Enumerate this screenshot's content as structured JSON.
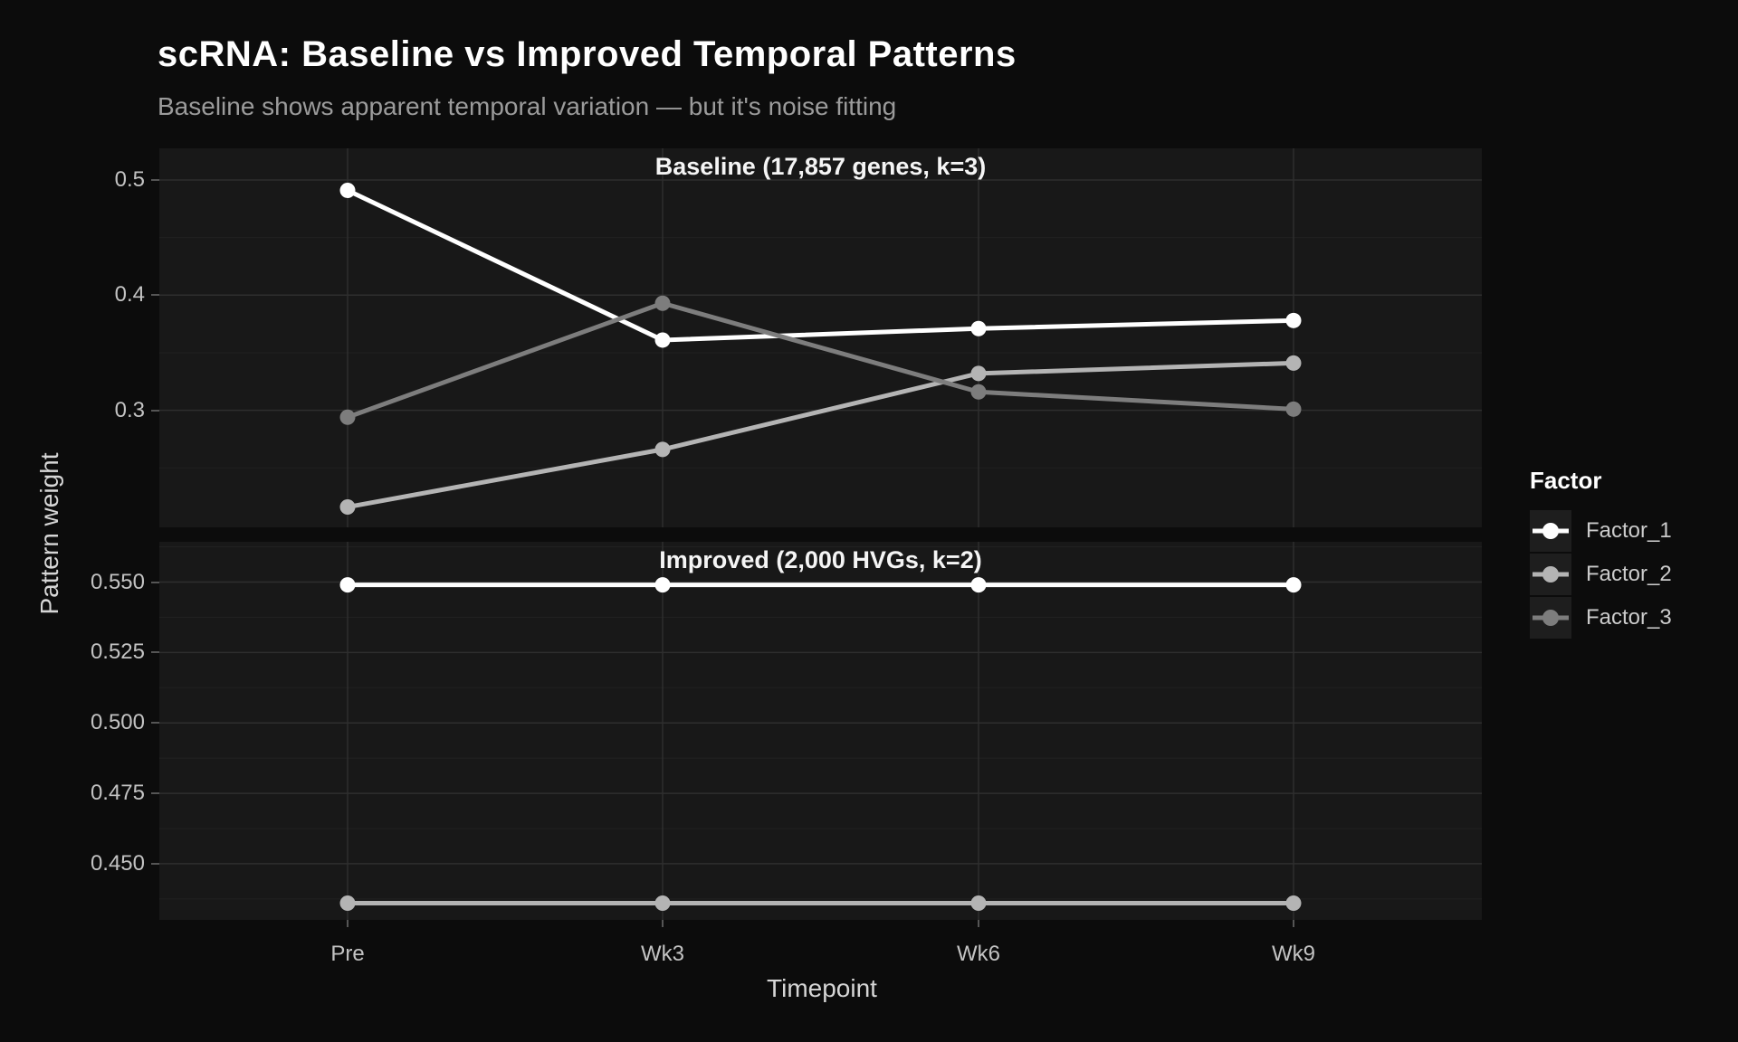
{
  "title": "scRNA: Baseline vs Improved Temporal Patterns",
  "subtitle": "Baseline shows apparent temporal variation — but it's noise fitting",
  "axes": {
    "x_title": "Timepoint",
    "y_title": "Pattern weight",
    "categories": [
      "Pre",
      "Wk3",
      "Wk6",
      "Wk9"
    ]
  },
  "legend": {
    "title": "Factor",
    "items": [
      {
        "label": "Factor_1",
        "color": "#ffffff"
      },
      {
        "label": "Factor_2",
        "color": "#b4b4b4"
      },
      {
        "label": "Factor_3",
        "color": "#7d7d7d"
      }
    ]
  },
  "colors": {
    "page_bg": "#0c0c0c",
    "panel_bg": "#181818",
    "grid_major": "#2e2e2e",
    "grid_minor": "#212121",
    "factor1": "#ffffff",
    "factor2": "#b4b4b4",
    "factor3": "#7d7d7d"
  },
  "chart_data": {
    "type": "line",
    "x": [
      "Pre",
      "Wk3",
      "Wk6",
      "Wk9"
    ],
    "xlabel": "Timepoint",
    "ylabel": "Pattern weight",
    "grid": true,
    "legend_position": "right",
    "facets": [
      {
        "title": "Baseline (17,857 genes, k=3)",
        "ylim": [
          0.198,
          0.528
        ],
        "yticks": [
          0.5,
          0.4,
          0.3
        ],
        "ytick_labels": [
          "0.5",
          "0.4",
          "0.3"
        ],
        "series": [
          {
            "name": "Factor_1",
            "color": "#ffffff",
            "values": [
              0.491,
              0.361,
              0.371,
              0.378
            ]
          },
          {
            "name": "Factor_2",
            "color": "#b4b4b4",
            "values": [
              0.216,
              0.266,
              0.332,
              0.341
            ]
          },
          {
            "name": "Factor_3",
            "color": "#7d7d7d",
            "values": [
              0.294,
              0.393,
              0.316,
              0.301
            ]
          }
        ]
      },
      {
        "title": "Improved (2,000 HVGs, k=2)",
        "ylim": [
          0.43,
          0.564
        ],
        "yticks": [
          0.55,
          0.525,
          0.5,
          0.475,
          0.45
        ],
        "ytick_labels": [
          "0.550",
          "0.525",
          "0.500",
          "0.475",
          "0.450"
        ],
        "series": [
          {
            "name": "Factor_1",
            "color": "#ffffff",
            "values": [
              0.549,
              0.549,
              0.549,
              0.549
            ]
          },
          {
            "name": "Factor_2",
            "color": "#b4b4b4",
            "values": [
              0.436,
              0.436,
              0.436,
              0.436
            ]
          }
        ]
      }
    ]
  }
}
